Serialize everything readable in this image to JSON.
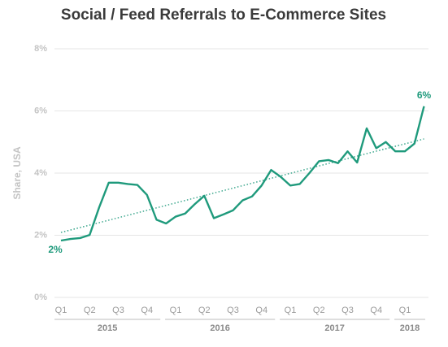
{
  "chart_data": {
    "type": "line",
    "title": "Social / Feed Referrals to E-Commerce Sites",
    "y_label": "Share, USA",
    "categories": [
      "Q1",
      null,
      null,
      "Q2",
      null,
      null,
      "Q3",
      null,
      null,
      "Q4",
      null,
      null,
      "Q1",
      null,
      null,
      "Q2",
      null,
      null,
      "Q3",
      null,
      null,
      "Q4",
      null,
      null,
      "Q1",
      null,
      null,
      "Q2",
      null,
      null,
      "Q3",
      null,
      null,
      "Q4",
      null,
      null,
      "Q1",
      null,
      null
    ],
    "year_groups": [
      "2015",
      "2016",
      "2017",
      "2018"
    ],
    "series": [
      {
        "name": "Share",
        "color": "#1f9a7c",
        "values": [
          1.83,
          1.88,
          1.91,
          2.01,
          2.9,
          3.69,
          3.69,
          3.65,
          3.62,
          3.3,
          2.5,
          2.38,
          2.6,
          2.7,
          3.0,
          3.27,
          2.55,
          2.67,
          2.8,
          3.12,
          3.25,
          3.6,
          4.1,
          3.88,
          3.6,
          3.65,
          4.0,
          4.38,
          4.42,
          4.32,
          4.7,
          4.34,
          5.44,
          4.8,
          5.0,
          4.7,
          4.7,
          4.95,
          6.15
        ]
      }
    ],
    "trendline": {
      "start": 2.09,
      "end": 5.1,
      "style": "dotted"
    },
    "annotations": [
      {
        "text": "2%",
        "point": 0
      },
      {
        "text": "6%",
        "point": 38
      }
    ],
    "ylim": [
      0,
      8
    ],
    "yticks": [
      {
        "value": 0,
        "label": "0%"
      },
      {
        "value": 2,
        "label": "2%"
      },
      {
        "value": 4,
        "label": "4%"
      },
      {
        "value": 6,
        "label": "6%"
      },
      {
        "value": 8,
        "label": "8%"
      }
    ],
    "grid": true
  }
}
